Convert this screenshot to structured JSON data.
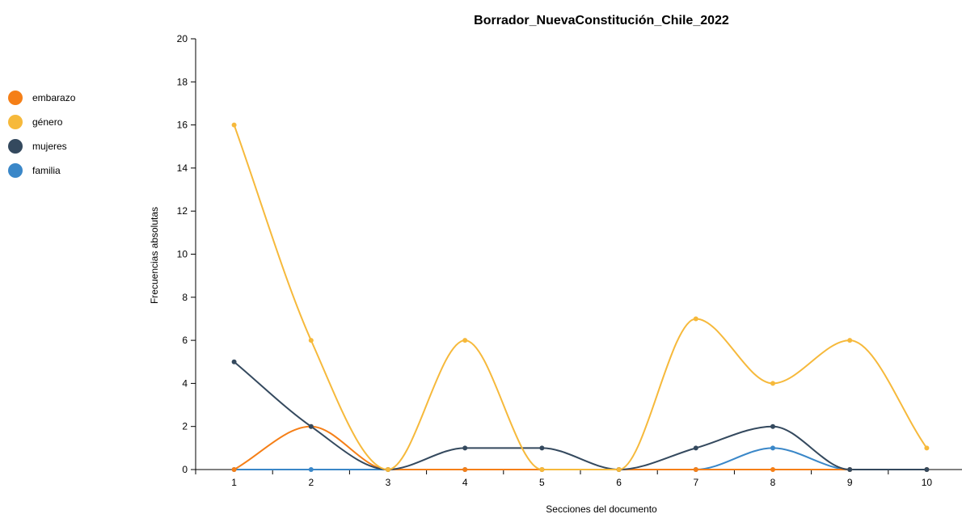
{
  "chart_data": {
    "type": "line",
    "title": "Borrador_NuevaConstitución_Chile_2022",
    "xlabel": "Secciones del documento",
    "ylabel": "Frecuencias absolutas",
    "x": [
      "1",
      "2",
      "3",
      "4",
      "5",
      "6",
      "7",
      "8",
      "9",
      "10"
    ],
    "ylim": [
      0,
      20
    ],
    "yticks": [
      "0",
      "2",
      "4",
      "6",
      "8",
      "10",
      "12",
      "14",
      "16",
      "18",
      "20"
    ],
    "legend_position": "left",
    "grid": false,
    "series": [
      {
        "name": "embarazo",
        "color": "#f57f17",
        "values": [
          0,
          2,
          0,
          0,
          0,
          0,
          0,
          0,
          0,
          0
        ]
      },
      {
        "name": "género",
        "color": "#f6b93b",
        "values": [
          16,
          6,
          0,
          6,
          0,
          0,
          7,
          4,
          6,
          1
        ]
      },
      {
        "name": "mujeres",
        "color": "#34495e",
        "values": [
          5,
          2,
          0,
          1,
          1,
          0,
          1,
          2,
          0,
          0
        ]
      },
      {
        "name": "familia",
        "color": "#3a87c8",
        "values": [
          0,
          0,
          0,
          0,
          0,
          0,
          0,
          1,
          0,
          0
        ]
      }
    ]
  }
}
